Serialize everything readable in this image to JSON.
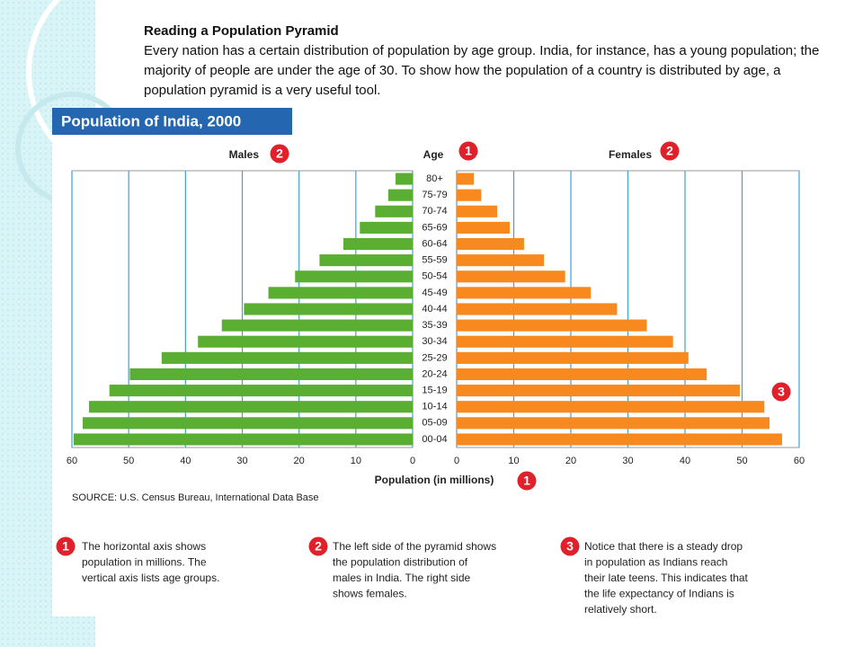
{
  "header": {
    "title": "Reading a Population Pyramid",
    "text": "Every nation has a certain distribution of population by age group. India, for instance, has a young population; the majority of people are under the age of 30. To show how the population of a country is distributed by age, a population pyramid is a very useful tool."
  },
  "chart_data": {
    "type": "pyramid",
    "title": "Population of India, 2000",
    "categories_label": "Age",
    "categories_badge": "1",
    "categories": [
      "80+",
      "75-79",
      "70-74",
      "65-69",
      "60-64",
      "55-59",
      "50-54",
      "45-49",
      "40-44",
      "35-39",
      "30-34",
      "25-29",
      "20-24",
      "15-19",
      "10-14",
      "05-09",
      "00-04"
    ],
    "series": [
      {
        "name": "Males",
        "badge": "2",
        "color": "#5aae32",
        "values": [
          3.0,
          4.3,
          6.6,
          9.3,
          12.2,
          16.4,
          20.7,
          25.4,
          29.7,
          33.6,
          37.8,
          44.2,
          49.8,
          53.4,
          57.0,
          58.1,
          59.7
        ]
      },
      {
        "name": "Females",
        "badge": "2",
        "color": "#f7891e",
        "values": [
          3.0,
          4.3,
          7.1,
          9.3,
          11.8,
          15.3,
          19.0,
          23.5,
          28.1,
          33.3,
          37.9,
          40.6,
          43.8,
          49.6,
          53.9,
          54.8,
          57.0
        ]
      }
    ],
    "xlabel": "Population (in millions)",
    "xlabel_badge": "1",
    "callout_badge": "3",
    "xlim": [
      0,
      60
    ],
    "xticks": [
      0,
      10,
      20,
      30,
      40,
      50,
      60
    ],
    "grid": true,
    "source": "SOURCE: U.S. Census Bureau, International Data Base",
    "notes": [
      {
        "badge": "1",
        "lines": [
          "The horizontal axis shows",
          "population in millions. The",
          "vertical axis lists age groups."
        ]
      },
      {
        "badge": "2",
        "lines": [
          "The left side of the pyramid shows",
          "the population distribution of",
          "males in India. The right side",
          "shows females."
        ]
      },
      {
        "badge": "3",
        "lines": [
          "Notice that there is a steady drop",
          "in population as Indians reach",
          "their late teens. This indicates that",
          "the life expectancy of Indians is",
          "relatively short."
        ]
      }
    ]
  }
}
